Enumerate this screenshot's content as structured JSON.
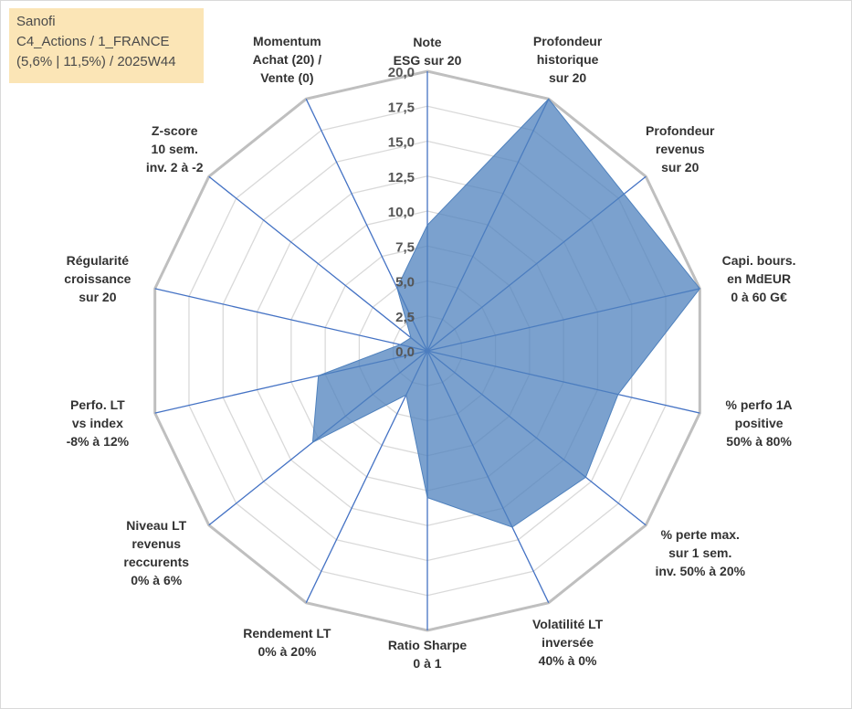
{
  "info_box": {
    "line1": "Sanofi",
    "line2": "C4_Actions / 1_FRANCE",
    "line3": "(5,6% | 11,5%) / 2025W44",
    "background": "#fbe5b6"
  },
  "chart_data": {
    "type": "radar",
    "axes": [
      {
        "label": [
          "Note",
          "ESG sur 20"
        ]
      },
      {
        "label": [
          "Profondeur",
          "historique",
          "sur 20"
        ]
      },
      {
        "label": [
          "Profondeur",
          "revenus",
          "sur 20"
        ]
      },
      {
        "label": [
          "Capi. bours.",
          "en MdEUR",
          "0 à 60 G€"
        ]
      },
      {
        "label": [
          "% perfo 1A",
          "positive",
          "50% à 80%"
        ]
      },
      {
        "label": [
          "% perte max.",
          "sur 1 sem.",
          "inv. 50% à 20%"
        ]
      },
      {
        "label": [
          "Volatilité LT",
          "inversée",
          "40% à 0%"
        ]
      },
      {
        "label": [
          "Ratio Sharpe",
          "0 à 1"
        ]
      },
      {
        "label": [
          "Rendement LT",
          "0% à 20%"
        ]
      },
      {
        "label": [
          "Niveau LT",
          "revenus",
          "reccurents",
          "0% à 6%"
        ]
      },
      {
        "label": [
          "Perfo. LT",
          "vs index",
          "-8% à 12%"
        ]
      },
      {
        "label": [
          "Régularité",
          "croissance",
          "sur 20"
        ]
      },
      {
        "label": [
          "Z-score",
          "10 sem.",
          "inv. 2 à -2"
        ]
      },
      {
        "label": [
          "Momentum",
          "Achat (20) /",
          "Vente (0)"
        ]
      }
    ],
    "values": [
      9.0,
      20.0,
      18.0,
      20.0,
      14.0,
      14.5,
      14.0,
      10.5,
      3.5,
      10.5,
      8.0,
      2.0,
      1.5,
      5.0
    ],
    "rmin": 0,
    "rmax": 20,
    "ticks": [
      "0,0",
      "2,5",
      "5,0",
      "7,5",
      "10,0",
      "12,5",
      "15,0",
      "17,5",
      "20,0"
    ],
    "colors": {
      "fill": "#4f81bd",
      "fill_opacity": 0.75,
      "spoke": "#4472c4",
      "grid_outer": "#bfbfbf",
      "grid_inner": "#d9d9d9"
    },
    "grid": true
  }
}
